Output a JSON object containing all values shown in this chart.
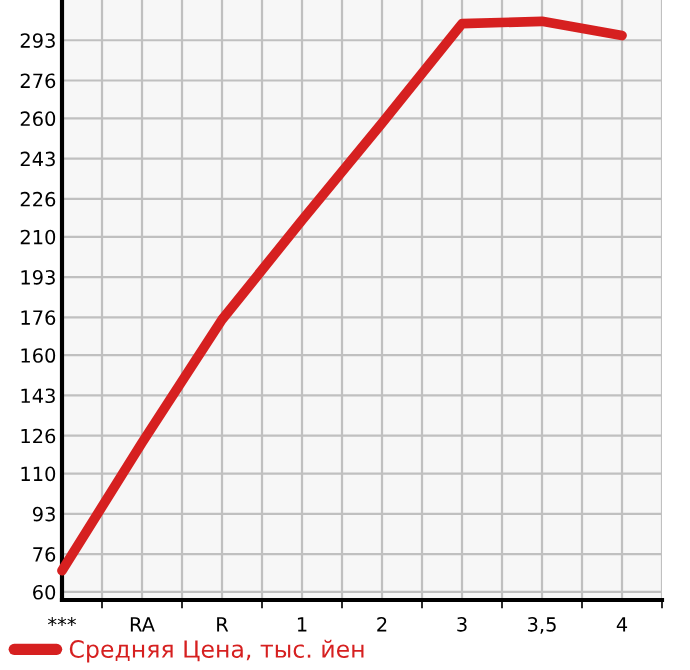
{
  "chart_data": {
    "type": "line",
    "categories": [
      "***",
      "RA",
      "R",
      "1",
      "2",
      "3",
      "3,5",
      "4"
    ],
    "series": [
      {
        "name": "Средняя Цена, тыс. йен",
        "color": "#d62020",
        "values": [
          69,
          123,
          175,
          217,
          258,
          300,
          301,
          295
        ]
      }
    ],
    "ylim": [
      56.6,
      310
    ],
    "yticks": [
      60,
      76,
      93,
      110,
      126,
      143,
      160,
      176,
      193,
      210,
      226,
      243,
      260,
      276,
      293
    ],
    "grid": true,
    "legend": "bottom",
    "marker": "none",
    "line_style": "solid"
  }
}
